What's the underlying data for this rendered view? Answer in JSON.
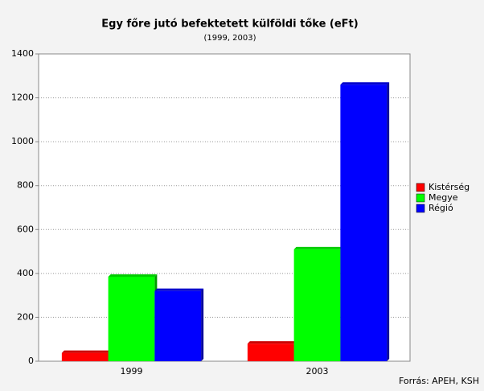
{
  "chart_data": {
    "type": "bar",
    "title": "Egy főre jutó befektetett külföldi tőke (eFt)",
    "subtitle": "(1999, 2003)",
    "source": "Forrás: APEH, KSH",
    "categories": [
      "1999",
      "2003"
    ],
    "series": [
      {
        "name": "Kistérség",
        "color": "#ff0000",
        "values": [
          38,
          80
        ]
      },
      {
        "name": "Megye",
        "color": "#00ff00",
        "values": [
          385,
          510
        ]
      },
      {
        "name": "Régió",
        "color": "#0000ff",
        "values": [
          320,
          1260
        ]
      }
    ],
    "ylim": [
      0,
      1400
    ],
    "yticks": [
      0,
      200,
      400,
      600,
      800,
      1000,
      1200,
      1400
    ],
    "grid": true,
    "legend": "right"
  }
}
